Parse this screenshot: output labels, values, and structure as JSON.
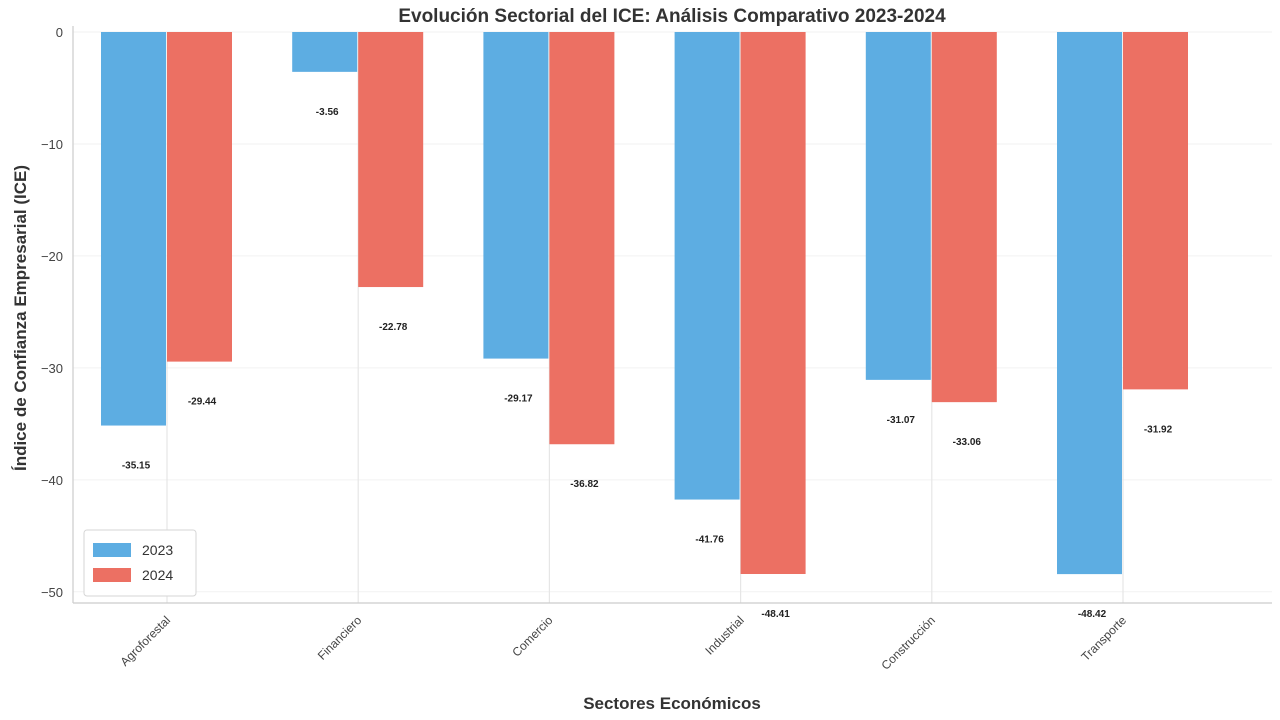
{
  "chart_data": {
    "type": "bar",
    "title": "Evolución Sectorial del ICE: Análisis Comparativo 2023-2024",
    "xlabel": "Sectores Económicos",
    "ylabel": "Índice de Confianza Empresarial (ICE)",
    "categories": [
      "Agroforestal",
      "Financiero",
      "Comercio",
      "Industrial",
      "Construcción",
      "Transporte"
    ],
    "series": [
      {
        "name": "2023",
        "color": "#5DADE2",
        "values": [
          -35.15,
          -3.56,
          -29.17,
          -41.76,
          -31.07,
          -48.42
        ],
        "labels": [
          "-35.15",
          "-3.56",
          "-29.17",
          "-41.76",
          "-31.07",
          "-48.42"
        ]
      },
      {
        "name": "2024",
        "color": "#EC7063",
        "values": [
          -29.44,
          -22.78,
          -36.82,
          -48.41,
          -33.06,
          -31.92
        ],
        "labels": [
          "-29.44",
          "-22.78",
          "-36.82",
          "-48.41",
          "-33.06",
          "-31.92"
        ]
      }
    ],
    "ylim": [
      -51,
      0
    ],
    "yticks": [
      0,
      -10,
      -20,
      -30,
      -40,
      -50
    ],
    "ytick_labels": [
      "0",
      "−10",
      "−20",
      "−30",
      "−40",
      "−50"
    ],
    "grid": true,
    "legend_position": "bottom-left"
  }
}
